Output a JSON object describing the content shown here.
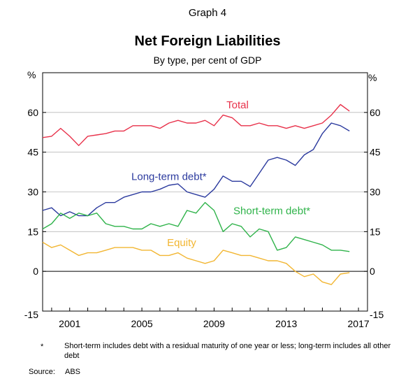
{
  "graph_label": "Graph 4",
  "chart_data": {
    "type": "line",
    "title": "Net Foreign Liabilities",
    "subtitle": "By type, per cent of GDP",
    "y_unit_left": "%",
    "y_unit_right": "%",
    "ylim": [
      -15,
      75
    ],
    "yticks": [
      -15,
      0,
      15,
      30,
      45,
      60
    ],
    "xlim": [
      1999.5,
      2017.5
    ],
    "xticks": [
      2001,
      2005,
      2009,
      2013,
      2017
    ],
    "grid": true,
    "series": [
      {
        "name": "Total",
        "color": "#e8314a",
        "x": [
          1999.5,
          2000,
          2000.5,
          2001,
          2001.5,
          2002,
          2002.5,
          2003,
          2003.5,
          2004,
          2004.5,
          2005,
          2005.5,
          2006,
          2006.5,
          2007,
          2007.5,
          2008,
          2008.5,
          2009,
          2009.5,
          2010,
          2010.5,
          2011,
          2011.5,
          2012,
          2012.5,
          2013,
          2013.5,
          2014,
          2014.5,
          2015,
          2015.5,
          2016,
          2016.5
        ],
        "values": [
          50.5,
          51,
          54,
          51,
          47.5,
          51,
          51.5,
          52,
          53,
          53,
          55,
          55,
          55,
          54,
          56,
          57,
          56,
          56,
          57,
          55,
          59,
          58,
          55,
          55,
          56,
          55,
          55,
          54,
          55,
          54,
          55,
          56,
          59,
          63,
          60.5
        ]
      },
      {
        "name": "Long-term debt*",
        "color": "#2b3a9e",
        "x": [
          1999.5,
          2000,
          2000.5,
          2001,
          2001.5,
          2002,
          2002.5,
          2003,
          2003.5,
          2004,
          2004.5,
          2005,
          2005.5,
          2006,
          2006.5,
          2007,
          2007.5,
          2008,
          2008.5,
          2009,
          2009.5,
          2010,
          2010.5,
          2011,
          2011.5,
          2012,
          2012.5,
          2013,
          2013.5,
          2014,
          2014.5,
          2015,
          2015.5,
          2016,
          2016.5
        ],
        "values": [
          23,
          24,
          21,
          22.5,
          21,
          21,
          24,
          26,
          26,
          28,
          29,
          30,
          30,
          31,
          32.5,
          33,
          30,
          29,
          28,
          31,
          36,
          34,
          34,
          32,
          37,
          42,
          43,
          42,
          40,
          44,
          46,
          52,
          56,
          55,
          53
        ]
      },
      {
        "name": "Short-term debt*",
        "color": "#2fb34a",
        "x": [
          1999.5,
          2000,
          2000.5,
          2001,
          2001.5,
          2002,
          2002.5,
          2003,
          2003.5,
          2004,
          2004.5,
          2005,
          2005.5,
          2006,
          2006.5,
          2007,
          2007.5,
          2008,
          2008.5,
          2009,
          2009.5,
          2010,
          2010.5,
          2011,
          2011.5,
          2012,
          2012.5,
          2013,
          2013.5,
          2014,
          2014.5,
          2015,
          2015.5,
          2016,
          2016.5
        ],
        "values": [
          16,
          18,
          22,
          20,
          22,
          21,
          22,
          18,
          17,
          17,
          16,
          16,
          18,
          17,
          18,
          17,
          23,
          22,
          26,
          23,
          15,
          18,
          17,
          13,
          16,
          15,
          8,
          9,
          13,
          12,
          11,
          10,
          8,
          8,
          7.5
        ]
      },
      {
        "name": "Equity",
        "color": "#f2b632",
        "x": [
          1999.5,
          2000,
          2000.5,
          2001,
          2001.5,
          2002,
          2002.5,
          2003,
          2003.5,
          2004,
          2004.5,
          2005,
          2005.5,
          2006,
          2006.5,
          2007,
          2007.5,
          2008,
          2008.5,
          2009,
          2009.5,
          2010,
          2010.5,
          2011,
          2011.5,
          2012,
          2012.5,
          2013,
          2013.5,
          2014,
          2014.5,
          2015,
          2015.5,
          2016,
          2016.5
        ],
        "values": [
          11,
          9,
          10,
          8,
          6,
          7,
          7,
          8,
          9,
          9,
          9,
          8,
          8,
          6,
          6,
          7,
          5,
          4,
          3,
          4,
          8,
          7,
          6,
          6,
          5,
          4,
          4,
          3,
          0,
          -2,
          -1,
          -4,
          -5,
          -1,
          -0.5
        ]
      }
    ],
    "series_labels": [
      "Total",
      "Long-term debt*",
      "Short-term debt*",
      "Equity"
    ]
  },
  "footnote": {
    "marker": "*",
    "text": "Short-term includes debt with a residual maturity of one year or less; long-term includes all other debt"
  },
  "source": {
    "label": "Source:",
    "value": "ABS"
  }
}
